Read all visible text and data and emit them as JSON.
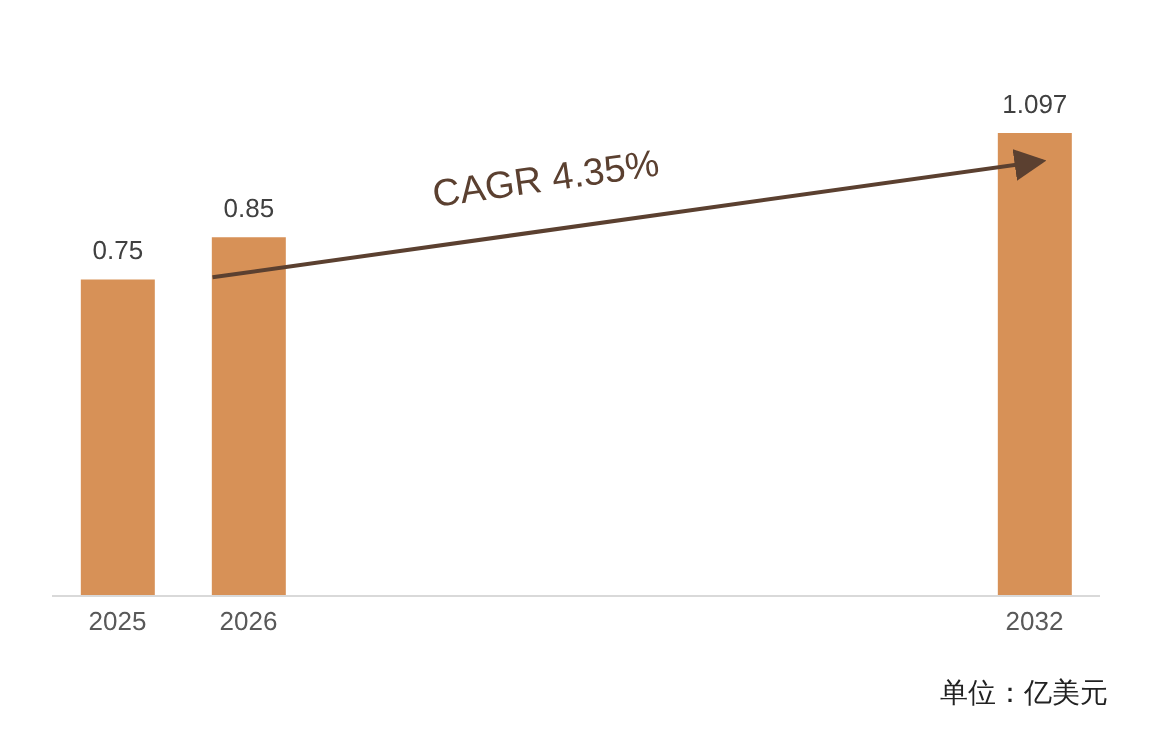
{
  "chart_data": {
    "type": "bar",
    "categories": [
      "2025",
      "2026",
      null,
      null,
      null,
      null,
      null,
      "2032"
    ],
    "values": [
      0.75,
      0.85,
      null,
      null,
      null,
      null,
      null,
      1.097
    ],
    "color": "#d79157",
    "data_labels": true,
    "annotations": [
      "CAGR 4.35%",
      "单位：亿美元"
    ]
  }
}
